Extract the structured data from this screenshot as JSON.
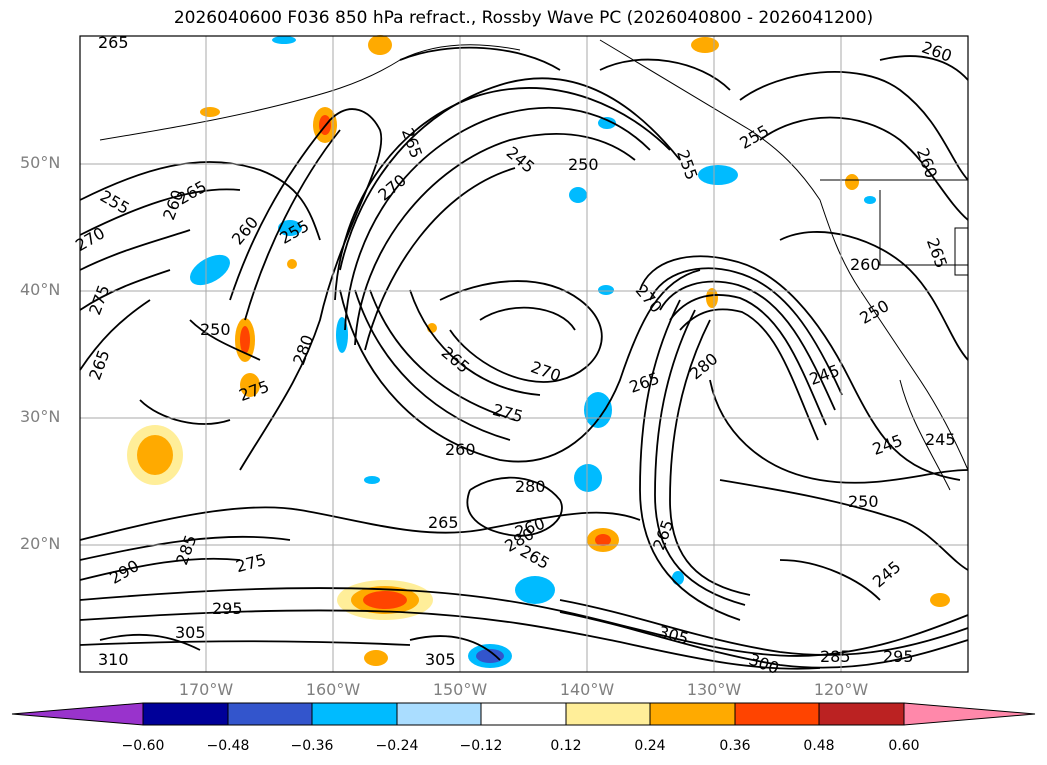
{
  "title": "2026040600 F036 850 hPa refract., Rossby Wave PC (2026040800 - 2026041200)",
  "lat_labels": [
    "50°N",
    "40°N",
    "30°N",
    "20°N"
  ],
  "lon_labels": [
    "170°W",
    "160°W",
    "150°W",
    "140°W",
    "130°W",
    "120°W"
  ],
  "contour_labels": [
    "265",
    "260",
    "255",
    "250",
    "245",
    "270",
    "275",
    "280",
    "285",
    "290",
    "295",
    "300",
    "305",
    "310"
  ],
  "colorbar": {
    "ticks": [
      "−0.60",
      "−0.48",
      "−0.36",
      "−0.24",
      "−0.12",
      "0.12",
      "0.24",
      "0.36",
      "0.48",
      "0.60"
    ],
    "colors": [
      "#9933cc",
      "#000099",
      "#3355cc",
      "#00bbff",
      "#aaddff",
      "#ffffff",
      "#ffee99",
      "#ffaa00",
      "#ff4400",
      "#bb2222",
      "#ff88aa"
    ]
  }
}
